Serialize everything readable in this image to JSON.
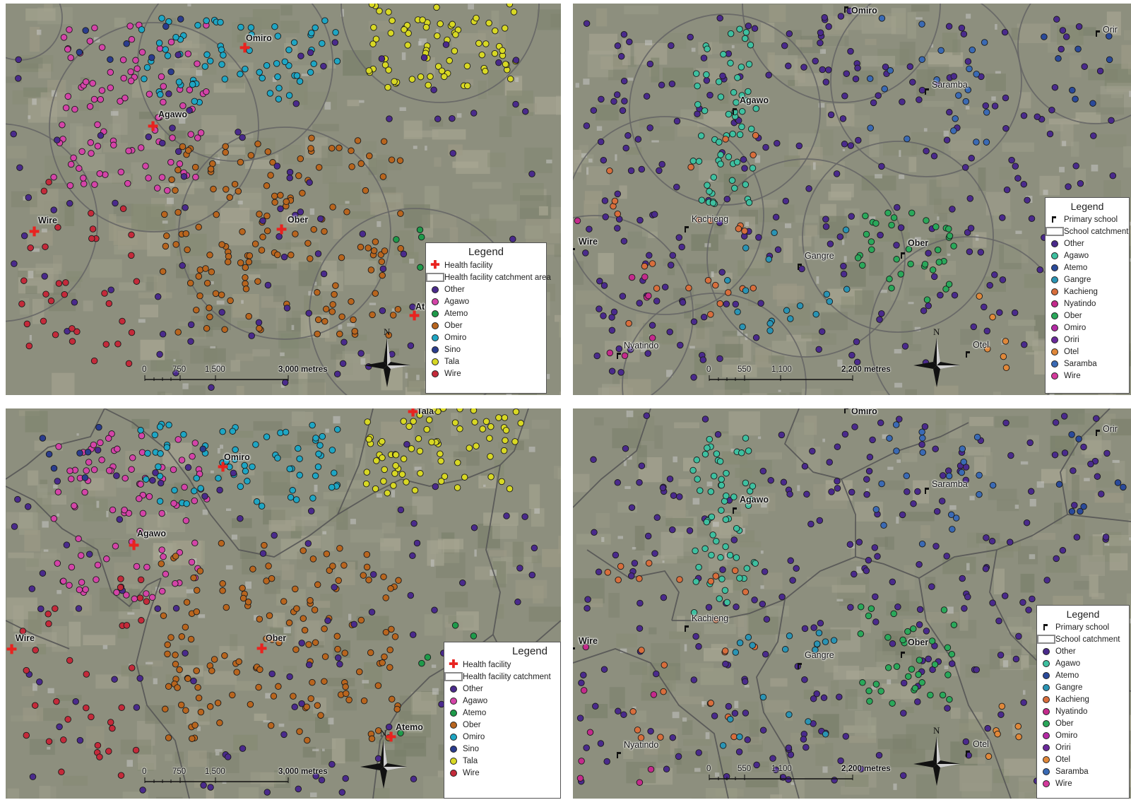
{
  "panels": [
    {
      "id": "A",
      "legend": {
        "title": "Legend",
        "facility_label": "Health facility",
        "catchment_label": "Health facility catchment area",
        "classes": [
          {
            "name": "Other",
            "color": "#4a2a8c"
          },
          {
            "name": "Agawo",
            "color": "#d444a8"
          },
          {
            "name": "Atemo",
            "color": "#1e9a4a"
          },
          {
            "name": "Ober",
            "color": "#b8651e"
          },
          {
            "name": "Omiro",
            "color": "#1ea6c4"
          },
          {
            "name": "Sino",
            "color": "#2a3c8e"
          },
          {
            "name": "Tala",
            "color": "#d8d824"
          },
          {
            "name": "Wire",
            "color": "#c42a3a"
          }
        ]
      },
      "places": [
        "Omiro",
        "Agawo",
        "Wire",
        "Ober",
        "Ate"
      ],
      "scale": {
        "ticks": [
          "0",
          "750",
          "1,500",
          "3,000 metres"
        ]
      },
      "north": "N"
    },
    {
      "id": "B",
      "legend": {
        "title": "Legend",
        "school_label": "Primary school",
        "catchment_label": "School catchment",
        "classes": [
          {
            "name": "Other",
            "color": "#4a2a8c"
          },
          {
            "name": "Agawo",
            "color": "#3ec0a0"
          },
          {
            "name": "Atemo",
            "color": "#2a4a9a"
          },
          {
            "name": "Gangre",
            "color": "#2a94b4"
          },
          {
            "name": "Kachieng",
            "color": "#d86e3c"
          },
          {
            "name": "Nyatindo",
            "color": "#c42a8c"
          },
          {
            "name": "Ober",
            "color": "#2aa85a"
          },
          {
            "name": "Omiro",
            "color": "#b42aa4"
          },
          {
            "name": "Oriri",
            "color": "#6a2a9c"
          },
          {
            "name": "Otel",
            "color": "#e0883a"
          },
          {
            "name": "Saramba",
            "color": "#3a6ab4"
          },
          {
            "name": "Wire",
            "color": "#d43a9c"
          }
        ]
      },
      "places": [
        "Omiro",
        "Orir",
        "Saramba",
        "Agawo",
        "Kachieng",
        "Wire",
        "Gangre",
        "Ober",
        "Nyatindo",
        "Otel"
      ],
      "scale": {
        "ticks": [
          "0",
          "550",
          "1,100",
          "2,200 metres"
        ]
      },
      "north": "N"
    },
    {
      "id": "C",
      "legend": {
        "title": "Legend",
        "facility_label": "Health facility",
        "catchment_label": "Health facility catchment",
        "classes": [
          {
            "name": "Other",
            "color": "#4a2a8c"
          },
          {
            "name": "Agawo",
            "color": "#d444a8"
          },
          {
            "name": "Atemo",
            "color": "#1e9a4a"
          },
          {
            "name": "Ober",
            "color": "#b8651e"
          },
          {
            "name": "Omiro",
            "color": "#1ea6c4"
          },
          {
            "name": "Sino",
            "color": "#2a3c8e"
          },
          {
            "name": "Tala",
            "color": "#d8d824"
          },
          {
            "name": "Wire",
            "color": "#c42a3a"
          }
        ]
      },
      "places": [
        "Tala",
        "Omiro",
        "Agawo",
        "Wire",
        "Ober",
        "Atemo"
      ],
      "scale": {
        "ticks": [
          "0",
          "750",
          "1,500",
          "3,000 metres"
        ]
      },
      "north": "N"
    },
    {
      "id": "D",
      "legend": {
        "title": "Legend",
        "school_label": "Primary school",
        "catchment_label": "School catchment",
        "classes": [
          {
            "name": "Other",
            "color": "#4a2a8c"
          },
          {
            "name": "Agawo",
            "color": "#3ec0a0"
          },
          {
            "name": "Atemo",
            "color": "#2a4a9a"
          },
          {
            "name": "Gangre",
            "color": "#2a94b4"
          },
          {
            "name": "Kachieng",
            "color": "#d86e3c"
          },
          {
            "name": "Nyatindo",
            "color": "#c42a8c"
          },
          {
            "name": "Ober",
            "color": "#2aa85a"
          },
          {
            "name": "Omiro",
            "color": "#b42aa4"
          },
          {
            "name": "Oriri",
            "color": "#6a2a9c"
          },
          {
            "name": "Otel",
            "color": "#e0883a"
          },
          {
            "name": "Saramba",
            "color": "#3a6ab4"
          },
          {
            "name": "Wire",
            "color": "#d43a9c"
          }
        ]
      },
      "places": [
        "Omiro",
        "Orir",
        "Saramba",
        "Agawo",
        "Kachieng",
        "Wire",
        "Gangre",
        "Ober",
        "Nyatindo",
        "Otel"
      ],
      "scale": {
        "ticks": [
          "0",
          "550",
          "1,100",
          "2,200 metres"
        ]
      },
      "north": "N"
    }
  ]
}
